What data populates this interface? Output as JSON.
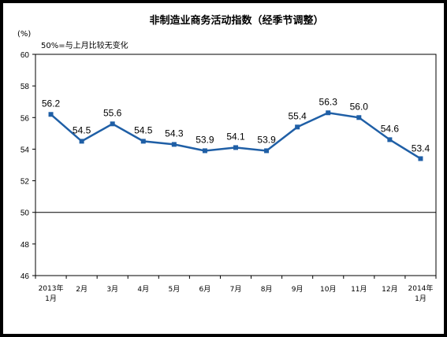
{
  "chart_data": {
    "type": "line",
    "title": "非制造业商务活动指数（经季节调整）",
    "unit": "(%)",
    "note": "50%=与上月比较无变化",
    "categories": [
      [
        "2013年",
        "1月"
      ],
      [
        "2月"
      ],
      [
        "3月"
      ],
      [
        "4月"
      ],
      [
        "5月"
      ],
      [
        "6月"
      ],
      [
        "7月"
      ],
      [
        "8月"
      ],
      [
        "9月"
      ],
      [
        "10月"
      ],
      [
        "11月"
      ],
      [
        "12月"
      ],
      [
        "2014年",
        "1月"
      ]
    ],
    "series": [
      {
        "values": [
          56.2,
          54.5,
          55.6,
          54.5,
          54.3,
          53.9,
          54.1,
          53.9,
          55.4,
          56.3,
          56.0,
          54.6,
          53.4
        ],
        "labels": [
          "56.2",
          "54.5",
          "55.6",
          "54.5",
          "54.3",
          "53.9",
          "54.1",
          "53.9",
          "55.4",
          "56.3",
          "56.0",
          "54.6",
          "53.4"
        ],
        "color": "#1f5fa6"
      }
    ],
    "ylim": [
      46,
      60
    ],
    "yticks": [
      "46",
      "48",
      "50",
      "52",
      "54",
      "56",
      "58",
      "60"
    ],
    "reference_line": 50,
    "grid": false
  }
}
